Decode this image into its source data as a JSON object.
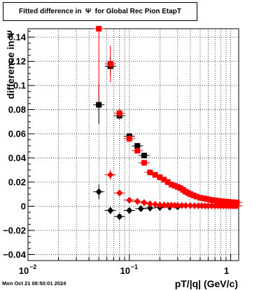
{
  "title": "Fitted difference in  Ψ  for Global Rec Pion EtapT",
  "timestamp": "Mon Oct 21 08:50:01 2024",
  "chart_data": {
    "type": "scatter",
    "title": "Fitted difference in  Ψ  for Global Rec Pion EtapT",
    "xlabel": "pT/|q| (GeV/c)",
    "ylabel": "difference in Ψ",
    "xscale": "log",
    "xlim": [
      0.01,
      1.2
    ],
    "ylim": [
      -0.045,
      0.147
    ],
    "grid": true,
    "x_ticks": [
      {
        "value": 0.01,
        "label": "10",
        "exp": "−2"
      },
      {
        "value": 0.1,
        "label": "10",
        "exp": "−1"
      },
      {
        "value": 1,
        "label": "1",
        "exp": ""
      }
    ],
    "y_ticks": [
      -0.04,
      -0.02,
      0,
      0.02,
      0.04,
      0.06,
      0.08,
      0.1,
      0.12,
      0.14
    ],
    "y_tick_labels": [
      "−0.04",
      "−0.02",
      "0",
      "0.02",
      "0.04",
      "0.06",
      "0.08",
      "0.1",
      "0.12",
      "0.14"
    ],
    "series": [
      {
        "color": "#000000",
        "marker": "square",
        "x": [
          0.05,
          0.065,
          0.08,
          0.1,
          0.12,
          0.14
        ],
        "y": [
          0.084,
          0.116,
          0.075,
          0.058,
          0.05,
          0.042
        ],
        "yerr": [
          0.016,
          0.008,
          0.003,
          0.002,
          0.002,
          0.002
        ]
      },
      {
        "color": "#ff0000",
        "marker": "square",
        "x": [
          0.05,
          0.065,
          0.08,
          0.1,
          0.12,
          0.14,
          0.16,
          0.18,
          0.2,
          0.22,
          0.24,
          0.26,
          0.28,
          0.3,
          0.32,
          0.34,
          0.36,
          0.38,
          0.4,
          0.43,
          0.46,
          0.5,
          0.54,
          0.58,
          0.62,
          0.66,
          0.7,
          0.75,
          0.8,
          0.85,
          0.9,
          0.95,
          1.0,
          1.05,
          1.1,
          1.15
        ],
        "y": [
          0.147,
          0.118,
          0.077,
          0.056,
          0.046,
          0.036,
          0.028,
          0.026,
          0.024,
          0.022,
          0.02,
          0.018,
          0.017,
          0.016,
          0.015,
          0.0135,
          0.012,
          0.011,
          0.01,
          0.009,
          0.008,
          0.007,
          0.0065,
          0.006,
          0.0055,
          0.005,
          0.0048,
          0.0045,
          0.0042,
          0.004,
          0.0038,
          0.0036,
          0.0034,
          0.0033,
          0.0032,
          0.0031
        ],
        "yerr": [
          0.06,
          0.015,
          0.004,
          0.003,
          0.002,
          0.002,
          0.0015,
          0.0012,
          0.001,
          0.001,
          0.001,
          0.001,
          0.001,
          0.001,
          0.001,
          0.001,
          0.001,
          0.001,
          0.001,
          0.001,
          0.001,
          0.001,
          0.001,
          0.001,
          0.001,
          0.001,
          0.001,
          0.001,
          0.001,
          0.001,
          0.001,
          0.001,
          0.001,
          0.001,
          0.001,
          0.001
        ]
      },
      {
        "color": "#000000",
        "marker": "diamond",
        "x": [
          0.05,
          0.065,
          0.08,
          0.1,
          0.13,
          0.16,
          0.2,
          0.25,
          0.3
        ],
        "y": [
          0.012,
          -0.0035,
          -0.0085,
          -0.0035,
          -0.002,
          -0.0015,
          -0.001,
          -0.0008,
          -0.0005
        ],
        "yerr": [
          0.006,
          0.003,
          0.002,
          0.0015,
          0.001,
          0.001,
          0.001,
          0.001,
          0.001
        ]
      },
      {
        "color": "#ff0000",
        "marker": "diamond",
        "x": [
          0.065,
          0.08,
          0.1,
          0.12,
          0.14,
          0.16,
          0.18,
          0.2,
          0.22,
          0.24,
          0.26,
          0.28,
          0.3,
          0.33,
          0.36,
          0.4,
          0.44,
          0.48,
          0.52,
          0.56,
          0.6,
          0.65,
          0.7,
          0.75,
          0.8,
          0.85,
          0.9,
          0.95,
          1.0,
          1.05,
          1.1,
          1.15
        ],
        "y": [
          0.026,
          0.011,
          0.005,
          0.004,
          0.003,
          0.002,
          0.0015,
          0.001,
          0.001,
          0.0008,
          0.0008,
          0.0007,
          0.0007,
          0.0006,
          0.0005,
          0.0005,
          0.0004,
          0.0004,
          0.0004,
          0.0003,
          0.0003,
          0.0003,
          0.0003,
          0.0003,
          0.0003,
          0.0003,
          0.0003,
          0.0003,
          0.0003,
          0.0003,
          0.0003,
          0.0003
        ],
        "yerr": [
          0.004,
          0.002,
          0.001,
          0.001,
          0.001,
          0.001,
          0.001,
          0.001,
          0.001,
          0.001,
          0.001,
          0.001,
          0.001,
          0.001,
          0.001,
          0.001,
          0.001,
          0.001,
          0.001,
          0.001,
          0.001,
          0.001,
          0.001,
          0.001,
          0.001,
          0.001,
          0.001,
          0.001,
          0.001,
          0.001,
          0.001,
          0.001
        ]
      }
    ]
  }
}
